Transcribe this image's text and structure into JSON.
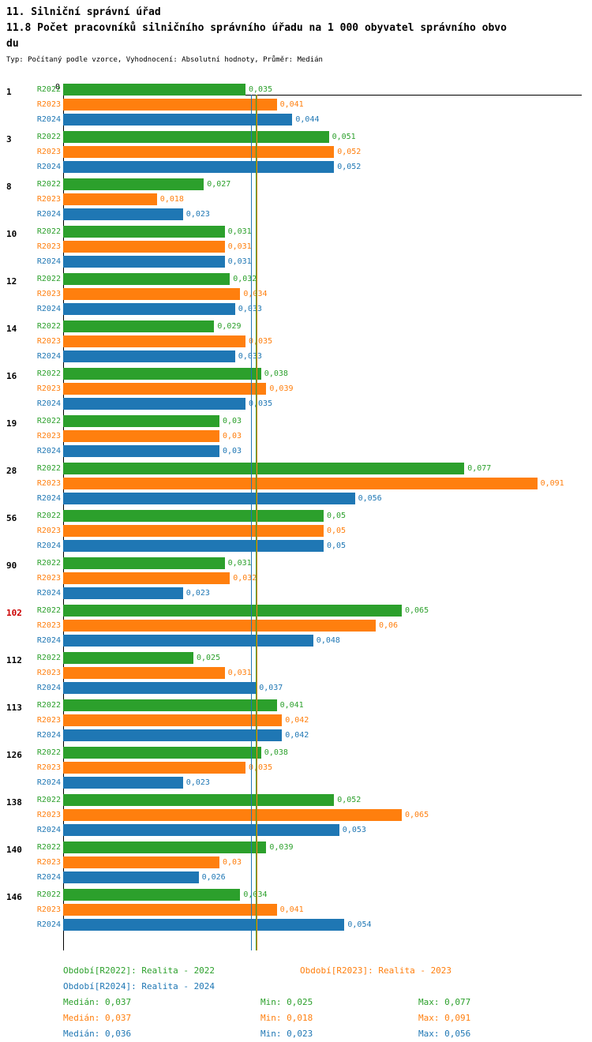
{
  "title": "11. Silniční správní úřad",
  "subtitle_line1": "11.8 Počet pracovníků silničního správního úřadu na 1 000 obyvatel správního obvo",
  "subtitle_line2": "du",
  "meta": "Typ: Počítaný podle vzorce, Vyhodnocení: Absolutní hodnoty, Průměr: Medián",
  "chart_data": {
    "type": "bar",
    "orientation": "horizontal",
    "title": "11.8 Počet pracovníků silničního správního úřadu na 1 000 obyvatel správního obvodu",
    "xlabel": "",
    "ylabel": "",
    "xlim": [
      0,
      0.1
    ],
    "axis_origin_label": "0",
    "series_labels": [
      "R2022",
      "R2023",
      "R2024"
    ],
    "colors": [
      "#2ca02c",
      "#ff7f0e",
      "#1f77b4"
    ],
    "highlight_color": "#cc0000",
    "groups": [
      {
        "id": "1",
        "highlight": false,
        "values": [
          0.035,
          0.041,
          0.044
        ],
        "labels": [
          "0,035",
          "0,041",
          "0,044"
        ]
      },
      {
        "id": "3",
        "highlight": false,
        "values": [
          0.051,
          0.052,
          0.052
        ],
        "labels": [
          "0,051",
          "0,052",
          "0,052"
        ]
      },
      {
        "id": "8",
        "highlight": false,
        "values": [
          0.027,
          0.018,
          0.023
        ],
        "labels": [
          "0,027",
          "0,018",
          "0,023"
        ]
      },
      {
        "id": "10",
        "highlight": false,
        "values": [
          0.031,
          0.031,
          0.031
        ],
        "labels": [
          "0,031",
          "0,031",
          "0,031"
        ]
      },
      {
        "id": "12",
        "highlight": false,
        "values": [
          0.032,
          0.034,
          0.033
        ],
        "labels": [
          "0,032",
          "0,034",
          "0,033"
        ]
      },
      {
        "id": "14",
        "highlight": false,
        "values": [
          0.029,
          0.035,
          0.033
        ],
        "labels": [
          "0,029",
          "0,035",
          "0,033"
        ]
      },
      {
        "id": "16",
        "highlight": false,
        "values": [
          0.038,
          0.039,
          0.035
        ],
        "labels": [
          "0,038",
          "0,039",
          "0,035"
        ]
      },
      {
        "id": "19",
        "highlight": false,
        "values": [
          0.03,
          0.03,
          0.03
        ],
        "labels": [
          "0,03",
          "0,03",
          "0,03"
        ]
      },
      {
        "id": "28",
        "highlight": false,
        "values": [
          0.077,
          0.091,
          0.056
        ],
        "labels": [
          "0,077",
          "0,091",
          "0,056"
        ]
      },
      {
        "id": "56",
        "highlight": false,
        "values": [
          0.05,
          0.05,
          0.05
        ],
        "labels": [
          "0,05",
          "0,05",
          "0,05"
        ]
      },
      {
        "id": "90",
        "highlight": false,
        "values": [
          0.031,
          0.032,
          0.023
        ],
        "labels": [
          "0,031",
          "0,032",
          "0,023"
        ]
      },
      {
        "id": "102",
        "highlight": true,
        "values": [
          0.065,
          0.06,
          0.048
        ],
        "labels": [
          "0,065",
          "0,06",
          "0,048"
        ]
      },
      {
        "id": "112",
        "highlight": false,
        "values": [
          0.025,
          0.031,
          0.037
        ],
        "labels": [
          "0,025",
          "0,031",
          "0,037"
        ]
      },
      {
        "id": "113",
        "highlight": false,
        "values": [
          0.041,
          0.042,
          0.042
        ],
        "labels": [
          "0,041",
          "0,042",
          "0,042"
        ]
      },
      {
        "id": "126",
        "highlight": false,
        "values": [
          0.038,
          0.035,
          0.023
        ],
        "labels": [
          "0,038",
          "0,035",
          "0,023"
        ]
      },
      {
        "id": "138",
        "highlight": false,
        "values": [
          0.052,
          0.065,
          0.053
        ],
        "labels": [
          "0,052",
          "0,065",
          "0,053"
        ]
      },
      {
        "id": "140",
        "highlight": false,
        "values": [
          0.039,
          0.03,
          0.026
        ],
        "labels": [
          "0,039",
          "0,03",
          "0,026"
        ]
      },
      {
        "id": "146",
        "highlight": false,
        "values": [
          0.034,
          0.041,
          0.054
        ],
        "labels": [
          "0,034",
          "0,041",
          "0,054"
        ]
      }
    ],
    "medians": [
      {
        "series": "R2022",
        "value": 0.037,
        "color": "#2ca02c"
      },
      {
        "series": "R2023",
        "value": 0.037,
        "color": "#ff7f0e"
      },
      {
        "series": "R2024",
        "value": 0.036,
        "color": "#1f77b4"
      }
    ]
  },
  "legend": {
    "r2022": "Období[R2022]: Realita - 2022",
    "r2023": "Období[R2023]: Realita - 2023",
    "r2024": "Období[R2024]: Realita - 2024"
  },
  "stats": {
    "r2022": {
      "median": "Medián: 0,037",
      "min": "Min: 0,025",
      "max": "Max: 0,077"
    },
    "r2023": {
      "median": "Medián: 0,037",
      "min": "Min: 0,018",
      "max": "Max: 0,091"
    },
    "r2024": {
      "median": "Medián: 0,036",
      "min": "Min: 0,023",
      "max": "Max: 0,056"
    }
  }
}
